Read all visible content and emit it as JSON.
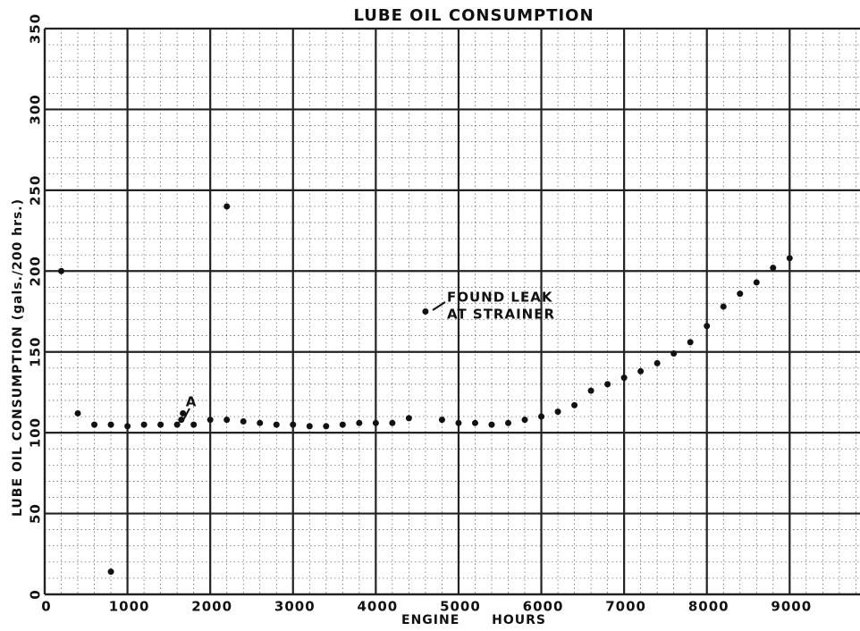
{
  "chart_data": {
    "type": "scatter",
    "title": "LUBE OIL CONSUMPTION",
    "x_label": "ENGINE HOURS",
    "y_label": "LUBE OIL CONSUMPTION (gals./200 hrs.)",
    "annotations": [
      "FOUND LEAK",
      "AT STRAINER",
      "A"
    ],
    "color": "#111111",
    "grid": true,
    "minor_grid": true,
    "xlim": [
      0,
      9850
    ],
    "ylim": [
      0,
      350
    ],
    "xticks": [
      0,
      1000,
      2000,
      3000,
      4000,
      5000,
      6000,
      7000,
      8000,
      9000
    ],
    "yticks": [
      0,
      50,
      100,
      150,
      200,
      250,
      300,
      350
    ],
    "x": [
      200,
      400,
      600,
      800,
      800,
      1000,
      1200,
      1400,
      1600,
      1650,
      1670,
      1800,
      2000,
      2200,
      2200,
      2400,
      2600,
      2800,
      3000,
      3200,
      3400,
      3600,
      3800,
      4000,
      4200,
      4400,
      4600,
      4800,
      5000,
      5200,
      5400,
      5600,
      5800,
      6000,
      6200,
      6400,
      6600,
      6800,
      7000,
      7200,
      7400,
      7600,
      7800,
      8000,
      8200,
      8400,
      8600,
      8800,
      9000
    ],
    "values": [
      200,
      112,
      105,
      105,
      14,
      104,
      105,
      105,
      105,
      108,
      112,
      105,
      108,
      240,
      108,
      107,
      106,
      105,
      105,
      104,
      104,
      105,
      106,
      106,
      106,
      109,
      175,
      108,
      106,
      106,
      105,
      106,
      108,
      110,
      113,
      117,
      126,
      130,
      134,
      138,
      143,
      149,
      156,
      166,
      178,
      186,
      193,
      202,
      208
    ]
  }
}
